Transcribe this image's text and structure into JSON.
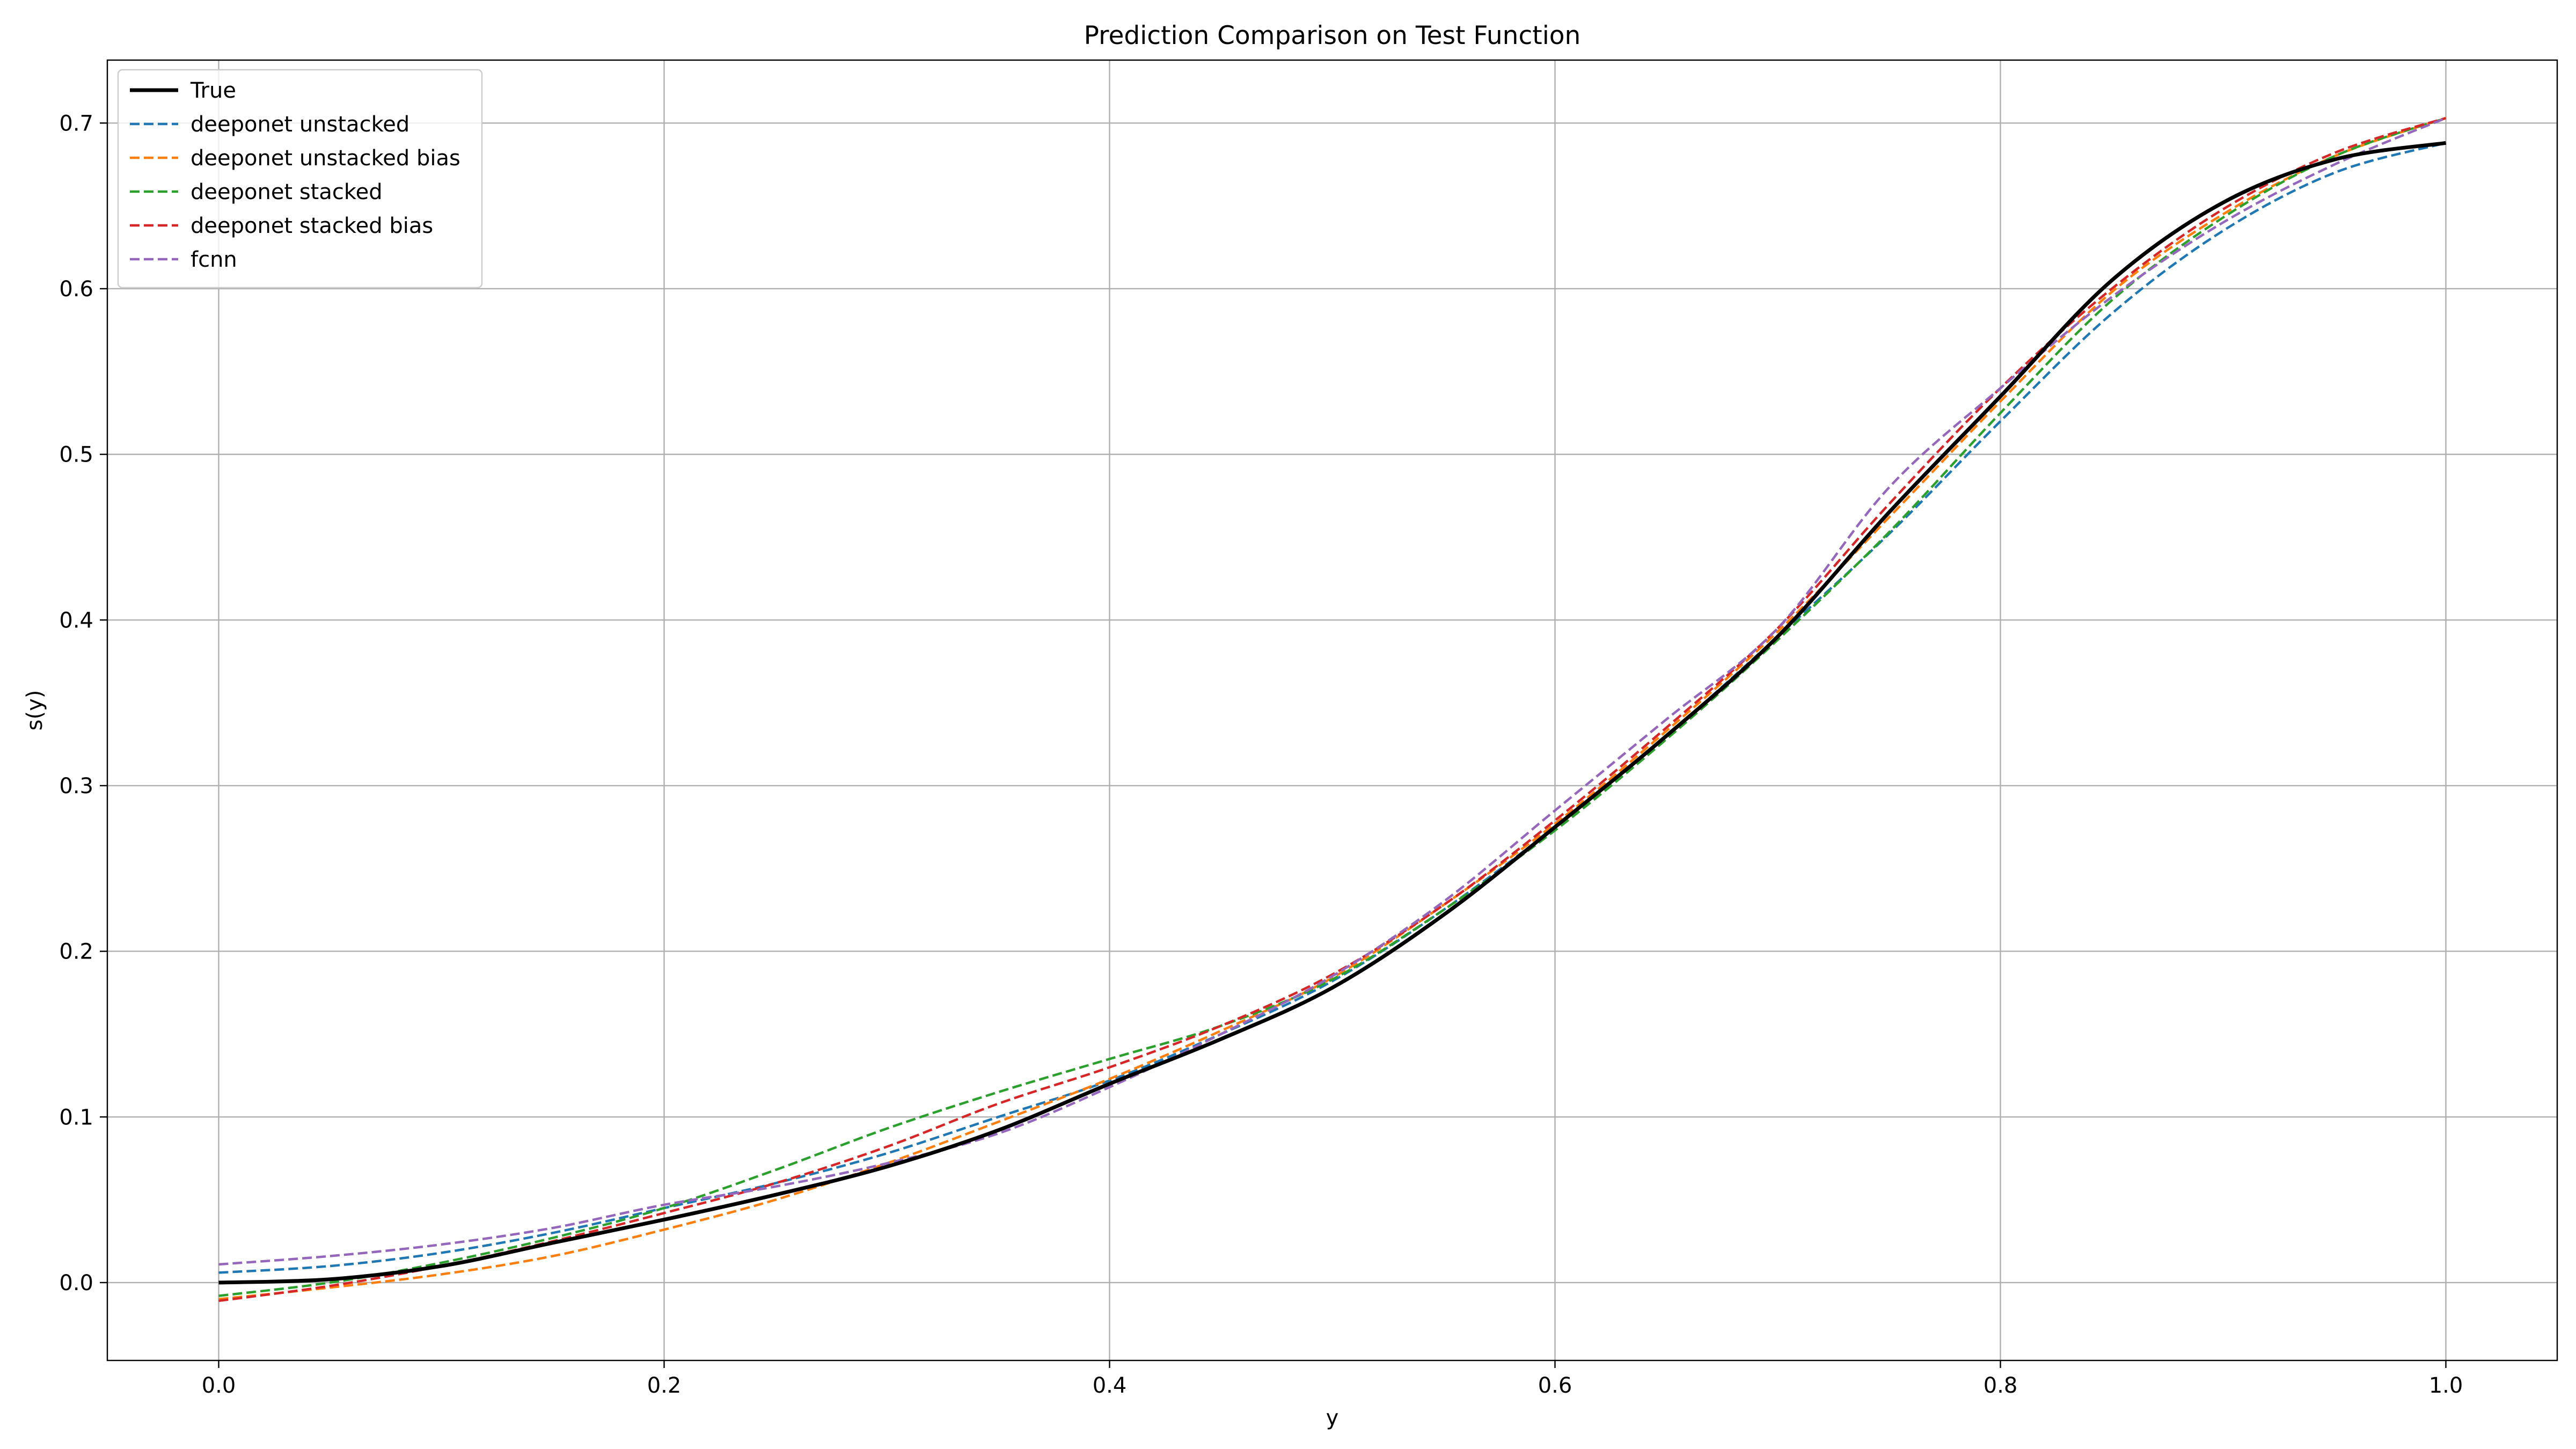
{
  "chart_data": {
    "type": "line",
    "title": "Prediction Comparison on Test Function",
    "xlabel": "y",
    "ylabel": "s(y)",
    "xlim": [
      -0.05,
      1.05
    ],
    "ylim": [
      -0.047,
      0.738
    ],
    "xticks": [
      0.0,
      0.2,
      0.4,
      0.6,
      0.8,
      1.0
    ],
    "xtick_labels": [
      "0.0",
      "0.2",
      "0.4",
      "0.6",
      "0.8",
      "1.0"
    ],
    "yticks": [
      0.0,
      0.1,
      0.2,
      0.3,
      0.4,
      0.5,
      0.6,
      0.7
    ],
    "ytick_labels": [
      "0.0",
      "0.1",
      "0.2",
      "0.3",
      "0.4",
      "0.5",
      "0.6",
      "0.7"
    ],
    "grid": true,
    "legend_position": "top-left",
    "x": [
      0.0,
      0.05,
      0.1,
      0.15,
      0.2,
      0.25,
      0.3,
      0.35,
      0.4,
      0.45,
      0.5,
      0.55,
      0.6,
      0.65,
      0.7,
      0.75,
      0.8,
      0.85,
      0.9,
      0.95,
      1.0
    ],
    "series": [
      {
        "name": "True",
        "color": "#000000",
        "style": "solid",
        "values": [
          0.0,
          0.002,
          0.01,
          0.024,
          0.038,
          0.053,
          0.07,
          0.092,
          0.12,
          0.147,
          0.178,
          0.222,
          0.275,
          0.33,
          0.39,
          0.465,
          0.535,
          0.605,
          0.652,
          0.678,
          0.688
        ]
      },
      {
        "name": "deeponet unstacked",
        "color": "#1f77b4",
        "style": "dashed",
        "values": [
          0.006,
          0.01,
          0.018,
          0.03,
          0.045,
          0.06,
          0.078,
          0.1,
          0.122,
          0.15,
          0.182,
          0.225,
          0.275,
          0.33,
          0.39,
          0.452,
          0.52,
          0.585,
          0.635,
          0.67,
          0.688
        ]
      },
      {
        "name": "deeponet unstacked bias",
        "color": "#ff7f0e",
        "style": "dashed",
        "values": [
          -0.01,
          -0.003,
          0.005,
          0.016,
          0.032,
          0.05,
          0.072,
          0.097,
          0.123,
          0.152,
          0.184,
          0.228,
          0.277,
          0.333,
          0.393,
          0.462,
          0.532,
          0.598,
          0.645,
          0.68,
          0.703
        ]
      },
      {
        "name": "deeponet stacked",
        "color": "#2ca02c",
        "style": "dashed",
        "values": [
          -0.008,
          0.0,
          0.012,
          0.027,
          0.045,
          0.068,
          0.093,
          0.115,
          0.135,
          0.155,
          0.183,
          0.225,
          0.273,
          0.328,
          0.388,
          0.453,
          0.525,
          0.593,
          0.643,
          0.68,
          0.703
        ]
      },
      {
        "name": "deeponet stacked bias",
        "color": "#d62728",
        "style": "dashed",
        "values": [
          -0.011,
          -0.002,
          0.01,
          0.025,
          0.042,
          0.06,
          0.082,
          0.108,
          0.13,
          0.155,
          0.186,
          0.228,
          0.279,
          0.335,
          0.395,
          0.47,
          0.54,
          0.6,
          0.648,
          0.682,
          0.703
        ]
      },
      {
        "name": "fcnn",
        "color": "#9467bd",
        "style": "dashed",
        "values": [
          0.011,
          0.016,
          0.023,
          0.033,
          0.047,
          0.058,
          0.072,
          0.09,
          0.118,
          0.15,
          0.185,
          0.23,
          0.285,
          0.34,
          0.395,
          0.48,
          0.54,
          0.595,
          0.64,
          0.675,
          0.703
        ]
      }
    ]
  }
}
